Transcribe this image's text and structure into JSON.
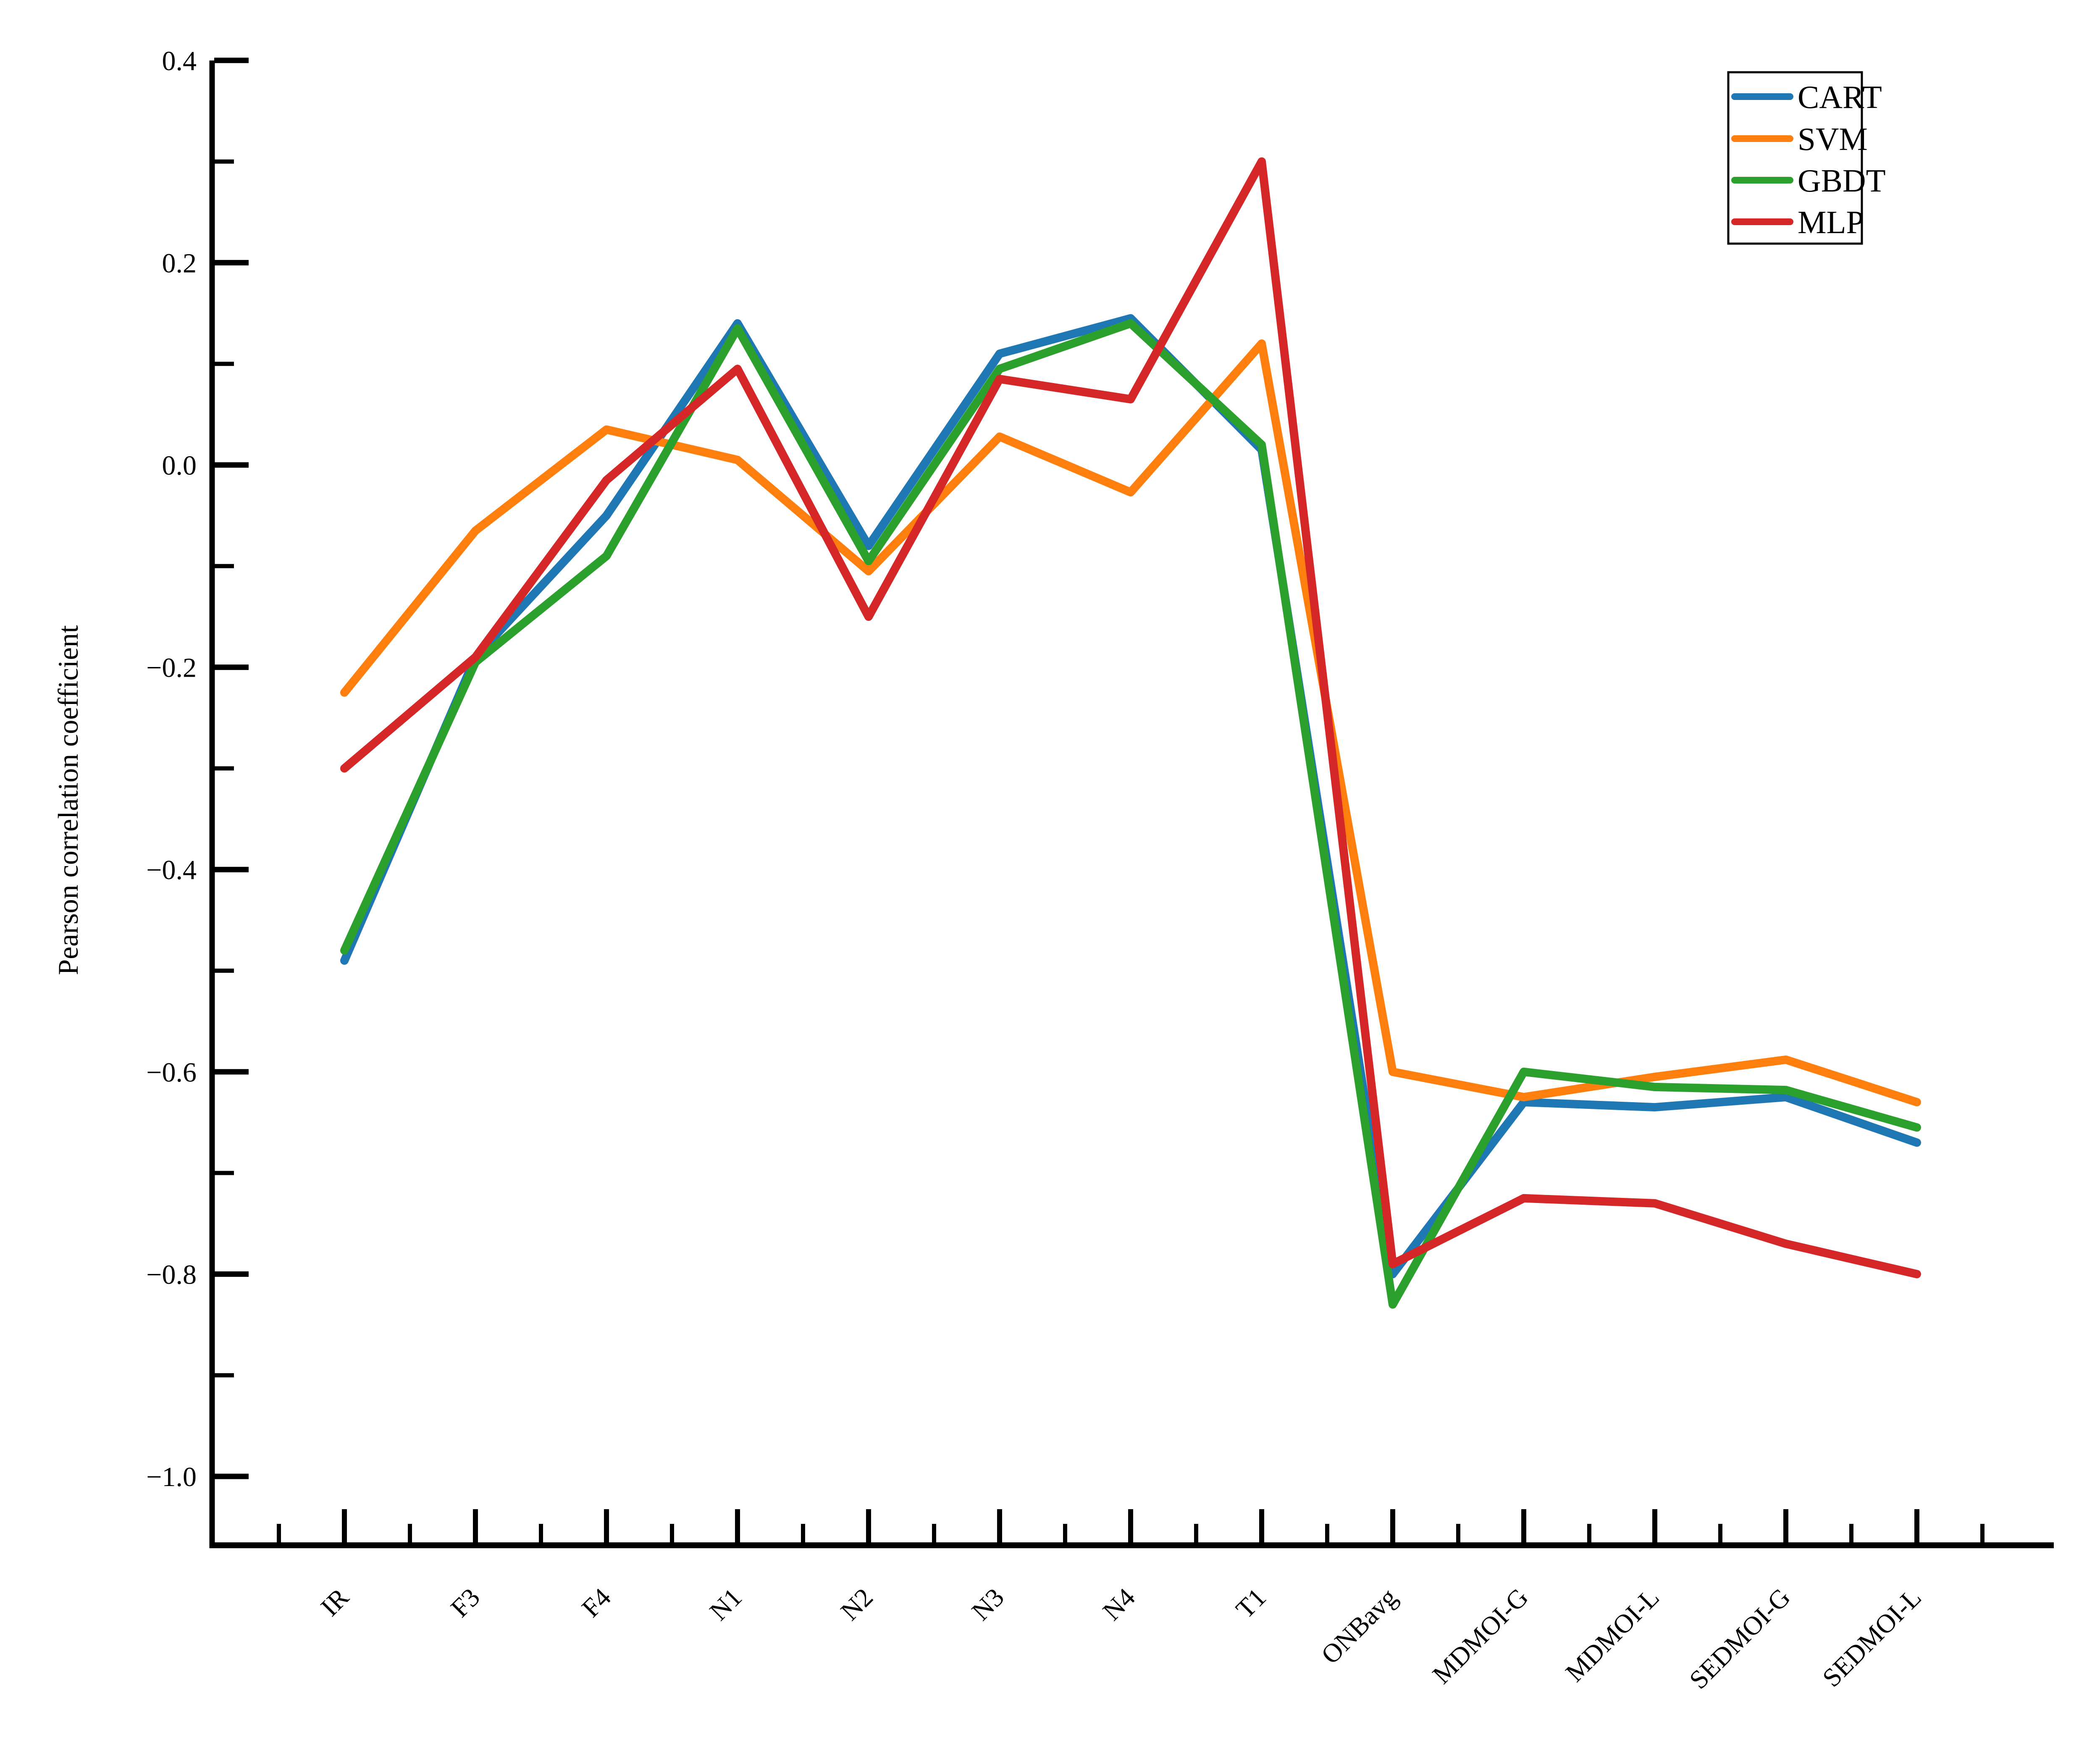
{
  "figure": {
    "background": "#ffffff",
    "axis_color": "#000000",
    "ylabel": "Pearson correlation coefficient"
  },
  "legend": {
    "position": "upper right",
    "items": [
      {
        "label": "CART",
        "color": "#1f77b4"
      },
      {
        "label": "SVM",
        "color": "#ff7f0e"
      },
      {
        "label": "GBDT",
        "color": "#2ca02c"
      },
      {
        "label": "MLP",
        "color": "#d62728"
      }
    ]
  },
  "chart_data": {
    "type": "line",
    "title": "",
    "xlabel": "",
    "ylabel": "Pearson correlation coefficient",
    "grid": false,
    "legend_position": "upper right",
    "ylim": [
      -1.07,
      0.4
    ],
    "yticks_major": [
      0.4,
      0.2,
      0.0,
      -0.2,
      -0.4,
      -0.6,
      -0.8,
      -1.0
    ],
    "ytick_labels": [
      "0.4",
      "0.2",
      "0.0",
      "−0.2",
      "−0.4",
      "−0.6",
      "−0.8",
      "−1.0"
    ],
    "yticks_minor": [
      0.3,
      0.1,
      -0.1,
      -0.3,
      -0.5,
      -0.7,
      -0.9
    ],
    "categories": [
      "IR",
      "F3",
      "F4",
      "N1",
      "N2",
      "N3",
      "N4",
      "T1",
      "ONBavg",
      "MDMOI-G",
      "MDMOI-L",
      "SEDMOI-G",
      "SEDMOI-L"
    ],
    "series": [
      {
        "name": "CART",
        "color": "#1f77b4",
        "values": [
          -0.49,
          -0.19,
          -0.05,
          0.14,
          -0.08,
          0.11,
          0.145,
          0.015,
          -0.8,
          -0.63,
          -0.635,
          -0.625,
          -0.67
        ]
      },
      {
        "name": "SVM",
        "color": "#ff7f0e",
        "values": [
          -0.225,
          -0.065,
          0.035,
          0.005,
          -0.105,
          0.028,
          -0.027,
          0.12,
          -0.6,
          -0.625,
          -0.605,
          -0.588,
          -0.63
        ]
      },
      {
        "name": "GBDT",
        "color": "#2ca02c",
        "values": [
          -0.48,
          -0.195,
          -0.09,
          0.135,
          -0.095,
          0.095,
          0.14,
          0.02,
          -0.83,
          -0.6,
          -0.615,
          -0.618,
          -0.655
        ]
      },
      {
        "name": "MLP",
        "color": "#d62728",
        "values": [
          -0.3,
          -0.19,
          -0.015,
          0.095,
          -0.15,
          0.085,
          0.065,
          0.3,
          -0.79,
          -0.725,
          -0.73,
          -0.77,
          -0.8
        ]
      }
    ]
  }
}
